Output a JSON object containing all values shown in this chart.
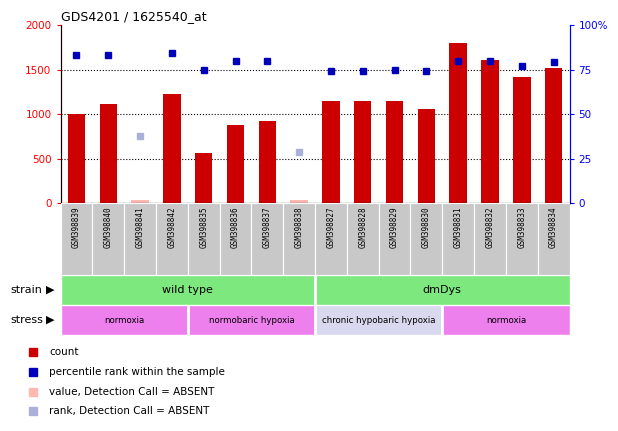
{
  "title": "GDS4201 / 1625540_at",
  "samples": [
    "GSM398839",
    "GSM398840",
    "GSM398841",
    "GSM398842",
    "GSM398835",
    "GSM398836",
    "GSM398837",
    "GSM398838",
    "GSM398827",
    "GSM398828",
    "GSM398829",
    "GSM398830",
    "GSM398831",
    "GSM398832",
    "GSM398833",
    "GSM398834"
  ],
  "count_values": [
    1000,
    1110,
    30,
    1225,
    560,
    875,
    920,
    30,
    1150,
    1150,
    1150,
    1060,
    1800,
    1610,
    1420,
    1520
  ],
  "count_absent": [
    false,
    false,
    true,
    false,
    false,
    false,
    false,
    true,
    false,
    false,
    false,
    false,
    false,
    false,
    false,
    false
  ],
  "percentile_values": [
    83,
    83,
    null,
    84,
    75,
    80,
    80,
    null,
    74,
    74,
    75,
    74,
    80,
    80,
    77,
    79
  ],
  "absent_rank_values": [
    null,
    null,
    750,
    null,
    null,
    null,
    null,
    570,
    null,
    null,
    null,
    null,
    null,
    null,
    null,
    null
  ],
  "ylim_left": [
    0,
    2000
  ],
  "ylim_right": [
    0,
    100
  ],
  "yticks_left": [
    0,
    500,
    1000,
    1500,
    2000
  ],
  "yticks_right": [
    0,
    25,
    50,
    75,
    100
  ],
  "bar_color": "#cc0000",
  "bar_absent_color": "#ffb8b0",
  "percentile_color": "#0000bb",
  "percentile_absent_color": "#aab0d8",
  "bg_color": "#ffffff",
  "strain_color": "#7de87d",
  "stress_pink": "#ee80ee",
  "stress_light": "#d8d8ee",
  "tick_bg": "#c8c8c8",
  "legend_items": [
    {
      "label": "count",
      "color": "#cc0000"
    },
    {
      "label": "percentile rank within the sample",
      "color": "#0000bb"
    },
    {
      "label": "value, Detection Call = ABSENT",
      "color": "#ffb8b0"
    },
    {
      "label": "rank, Detection Call = ABSENT",
      "color": "#aab0d8"
    }
  ]
}
